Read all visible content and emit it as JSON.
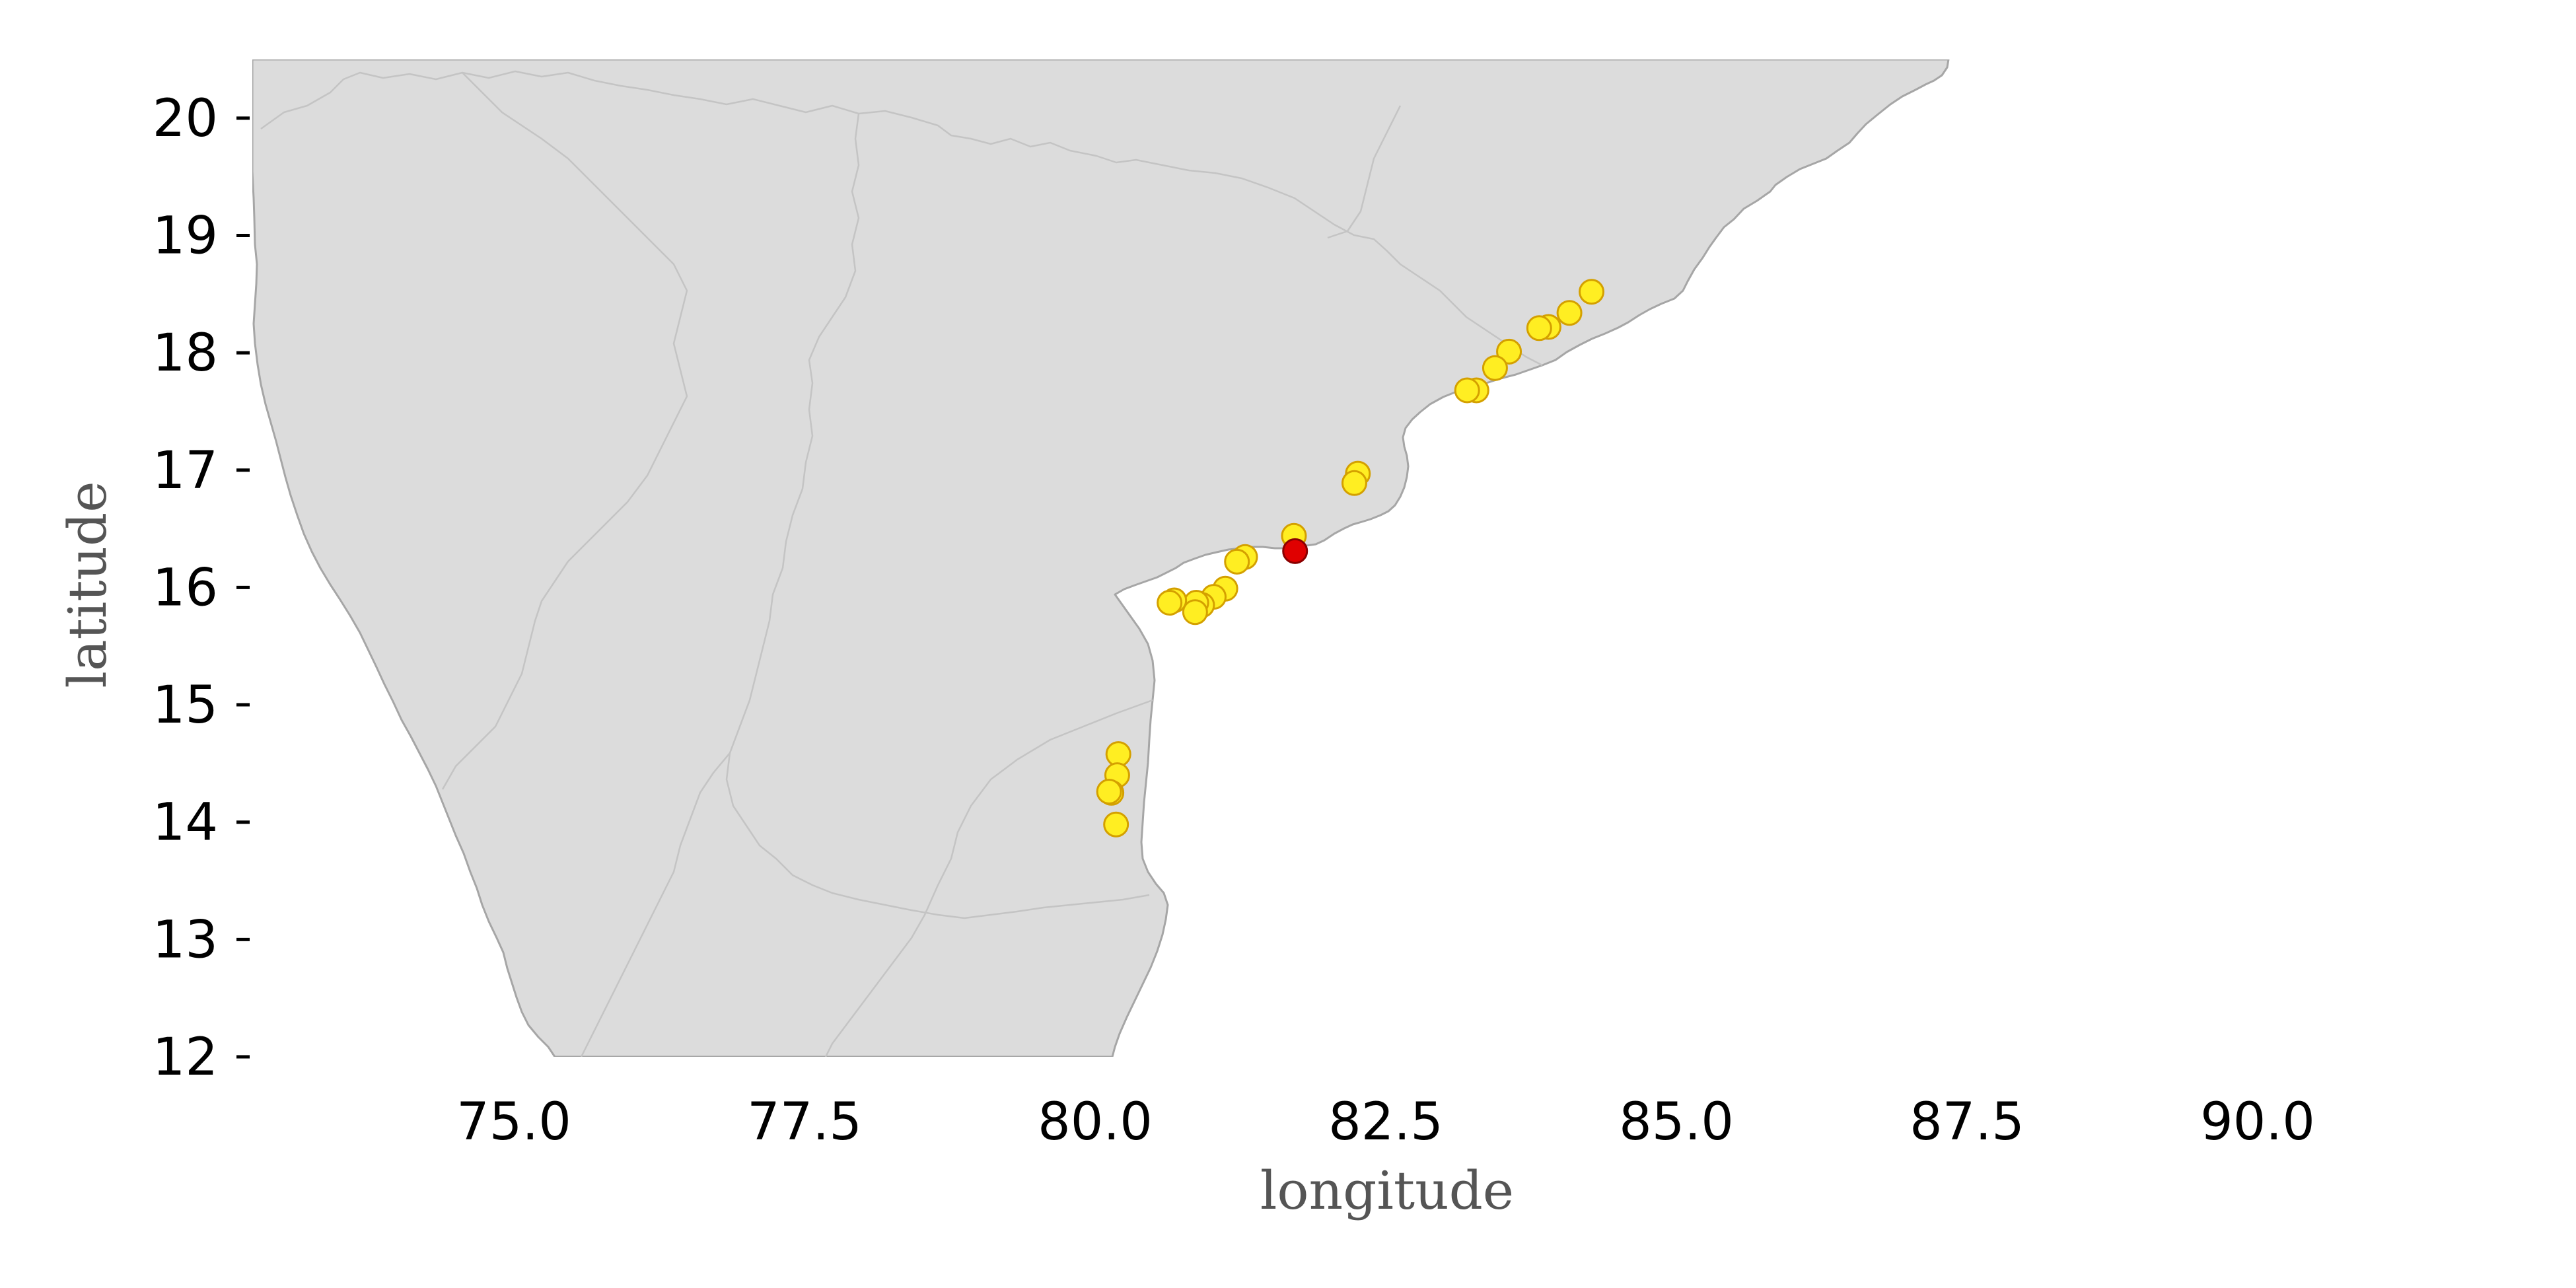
{
  "map": {
    "xlabel": "longitude",
    "ylabel": "latitude",
    "xlim": [
      72.75,
      91.5
    ],
    "ylim": [
      12,
      20.5
    ],
    "x_ticks": [
      "75.0",
      "77.5",
      "80.0",
      "82.5",
      "85.0",
      "87.5",
      "90.0"
    ],
    "x_tick_values": [
      75.0,
      77.5,
      80.0,
      82.5,
      85.0,
      87.5,
      90.0
    ],
    "y_ticks": [
      "12",
      "13",
      "14",
      "15",
      "16",
      "17",
      "18",
      "19",
      "20"
    ],
    "y_tick_values": [
      12,
      13,
      14,
      15,
      16,
      17,
      18,
      19,
      20
    ],
    "colors": {
      "land": "#dcdcdc",
      "coastline": "#a6a6a6",
      "state_borders": "#c4c4c4",
      "site_marker": "#ffee22",
      "highlight_marker": "#e00000"
    },
    "sites": [
      {
        "lon": 84.27,
        "lat": 18.52
      },
      {
        "lon": 84.08,
        "lat": 18.34
      },
      {
        "lon": 83.9,
        "lat": 18.22
      },
      {
        "lon": 83.82,
        "lat": 18.21
      },
      {
        "lon": 83.56,
        "lat": 18.01
      },
      {
        "lon": 83.44,
        "lat": 17.87
      },
      {
        "lon": 83.28,
        "lat": 17.68
      },
      {
        "lon": 83.2,
        "lat": 17.68
      },
      {
        "lon": 82.26,
        "lat": 16.97
      },
      {
        "lon": 82.23,
        "lat": 16.89
      },
      {
        "lon": 81.71,
        "lat": 16.44
      },
      {
        "lon": 81.29,
        "lat": 16.26
      },
      {
        "lon": 81.22,
        "lat": 16.22
      },
      {
        "lon": 81.12,
        "lat": 15.99
      },
      {
        "lon": 81.02,
        "lat": 15.92
      },
      {
        "lon": 80.92,
        "lat": 15.85
      },
      {
        "lon": 80.87,
        "lat": 15.87
      },
      {
        "lon": 80.86,
        "lat": 15.79
      },
      {
        "lon": 80.68,
        "lat": 15.89
      },
      {
        "lon": 80.64,
        "lat": 15.87
      },
      {
        "lon": 80.2,
        "lat": 14.58
      },
      {
        "lon": 80.19,
        "lat": 14.4
      },
      {
        "lon": 80.14,
        "lat": 14.25
      },
      {
        "lon": 80.12,
        "lat": 14.26
      },
      {
        "lon": 80.18,
        "lat": 13.98
      }
    ],
    "highlighted_site": {
      "lon": 81.72,
      "lat": 16.31
    }
  }
}
